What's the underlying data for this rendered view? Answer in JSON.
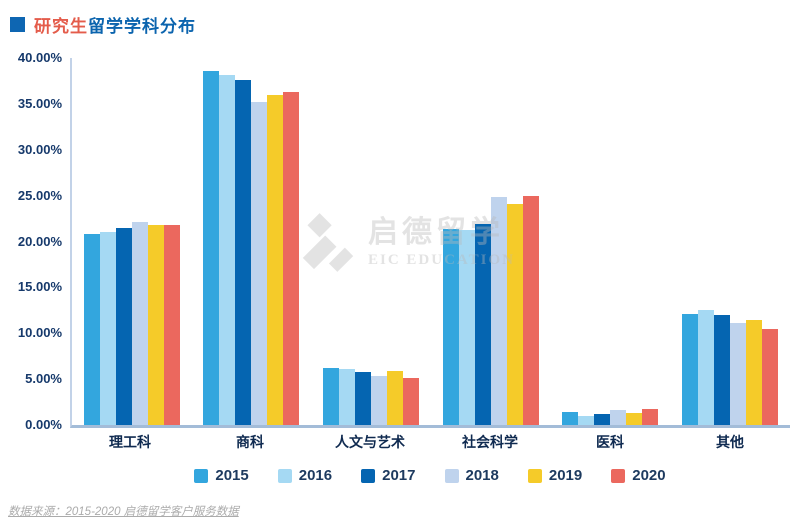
{
  "title": {
    "highlight": "研究生",
    "rest": "留学学科分布"
  },
  "watermark": {
    "line1": "启德留学",
    "line2": "EIC EDUCATION"
  },
  "footer": {
    "source": "数据来源：2015-2020 启德留学客户服务数据"
  },
  "colors": {
    "title_highlight": "#E45C4B",
    "title_rest": "#0B64AE",
    "title_bullet": "#0E66B2",
    "y_axis_line": "#C2D2E8",
    "x_axis_line": "#A3BCD8",
    "tick_text": "#16396B",
    "category_text": "#0F2A50",
    "legend_text": "#1D3A5F",
    "footer_text": "#ABABAB"
  },
  "chart_data": {
    "type": "bar",
    "title": "研究生留学学科分布",
    "xlabel": "",
    "ylabel": "",
    "categories": [
      "理工科",
      "商科",
      "人文与艺术",
      "社会科学",
      "医科",
      "其他"
    ],
    "series": [
      {
        "name": "2015",
        "color": "#33A6DE",
        "values": [
          20.8,
          38.6,
          6.2,
          21.4,
          1.4,
          12.1
        ]
      },
      {
        "name": "2016",
        "color": "#A5D9F3",
        "values": [
          21.0,
          38.1,
          6.1,
          21.3,
          1.0,
          12.5
        ]
      },
      {
        "name": "2017",
        "color": "#0565B1",
        "values": [
          21.5,
          37.6,
          5.8,
          21.9,
          1.2,
          12.0
        ]
      },
      {
        "name": "2018",
        "color": "#BFD3ED",
        "values": [
          22.1,
          35.2,
          5.3,
          24.9,
          1.6,
          11.1
        ]
      },
      {
        "name": "2019",
        "color": "#F5CB29",
        "values": [
          21.8,
          36.0,
          5.9,
          24.1,
          1.3,
          11.5
        ]
      },
      {
        "name": "2020",
        "color": "#EB685E",
        "values": [
          21.8,
          36.3,
          5.1,
          25.0,
          1.7,
          10.5
        ]
      }
    ],
    "ylim": [
      0,
      40
    ],
    "yticks": [
      0,
      5,
      10,
      15,
      20,
      25,
      30,
      35,
      40
    ],
    "ytick_suffix": "%",
    "ytick_decimals": 2,
    "grid": false,
    "legend_position": "bottom"
  }
}
